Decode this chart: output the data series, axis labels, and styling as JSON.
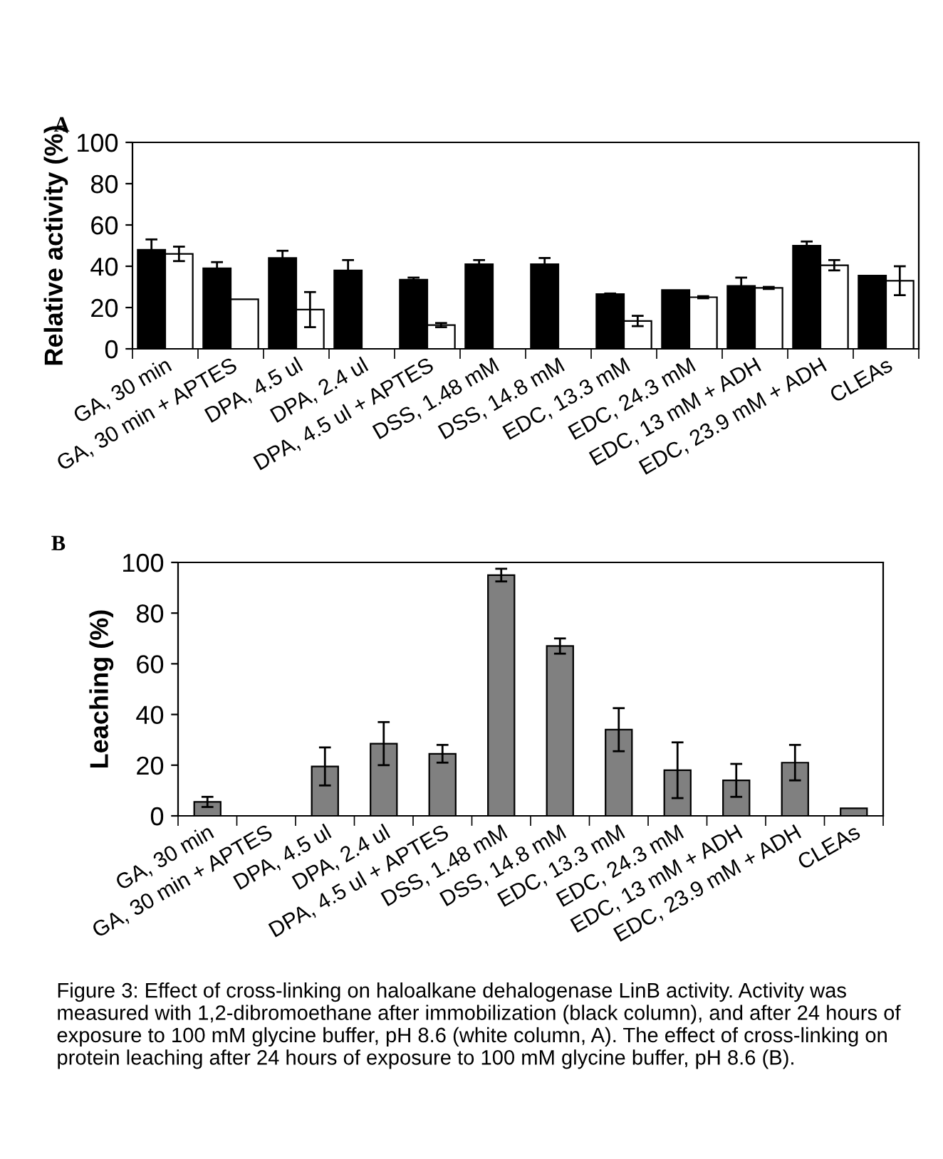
{
  "chart_data": [
    {
      "type": "bar",
      "title": "A",
      "ylabel": "Relative activity (%)",
      "categories": [
        "GA, 30 min",
        "GA, 30 min + APTES",
        "DPA, 4.5 ul",
        "DPA, 2.4 ul",
        "DPA, 4.5 ul + APTES",
        "DSS, 1.48 mM",
        "DSS, 14.8 mM",
        "EDC, 13.3 mM",
        "EDC, 24.3 mM",
        "EDC, 13 mM + ADH",
        "EDC, 23.9 mM + ADH",
        "CLEAs"
      ],
      "series": [
        {
          "color": "#000000",
          "values": [
            48,
            39,
            44,
            38,
            33.5,
            41,
            41,
            26.5,
            28.5,
            30.5,
            50,
            35.5
          ],
          "errors": [
            5,
            3,
            3.5,
            5,
            1,
            2,
            3,
            0.3,
            null,
            4,
            2,
            null
          ]
        },
        {
          "color": "#ffffff",
          "values": [
            46,
            24,
            19,
            null,
            11.5,
            null,
            null,
            13.5,
            25,
            29.5,
            40.5,
            33
          ],
          "errors": [
            3.5,
            null,
            8.5,
            null,
            1,
            null,
            null,
            2.5,
            0.5,
            0.5,
            2.5,
            7
          ]
        }
      ],
      "ylim": [
        0,
        100
      ],
      "yticks": [
        0,
        20,
        40,
        60,
        80,
        100
      ],
      "grid": false,
      "legend": false
    },
    {
      "type": "bar",
      "title": "B",
      "ylabel": "Leaching (%)",
      "categories": [
        "GA, 30 min",
        "GA, 30 min + APTES",
        "DPA, 4.5 ul",
        "DPA, 2.4 ul",
        "DPA, 4.5 ul + APTES",
        "DSS, 1.48 mM",
        "DSS, 14.8 mM",
        "EDC, 13.3 mM",
        "EDC, 24.3 mM",
        "EDC, 13 mM + ADH",
        "EDC, 23.9 mM + ADH",
        "CLEAs"
      ],
      "series": [
        {
          "color": "#808080",
          "values": [
            5.5,
            null,
            19.5,
            28.5,
            24.5,
            95,
            67,
            34,
            18,
            14,
            21,
            3
          ],
          "errors": [
            2,
            null,
            7.5,
            8.5,
            3.5,
            2.5,
            3,
            8.5,
            11,
            6.5,
            7,
            null
          ]
        }
      ],
      "ylim": [
        0,
        100
      ],
      "yticks": [
        0,
        20,
        40,
        60,
        80,
        100
      ],
      "grid": false,
      "legend": false,
      "annotations": [
        "Figure 3: Effect of cross-linking on haloalkane dehalogenase LinB activity. Activity was measured with 1,2-dibromoethane after immobilization (black column), and after 24 hours of exposure to 100 mM glycine buffer, pH 8.6 (white column, A). The effect of cross-linking on protein leaching after 24 hours of exposure to 100 mM glycine buffer, pH 8.6 (B)."
      ]
    }
  ]
}
